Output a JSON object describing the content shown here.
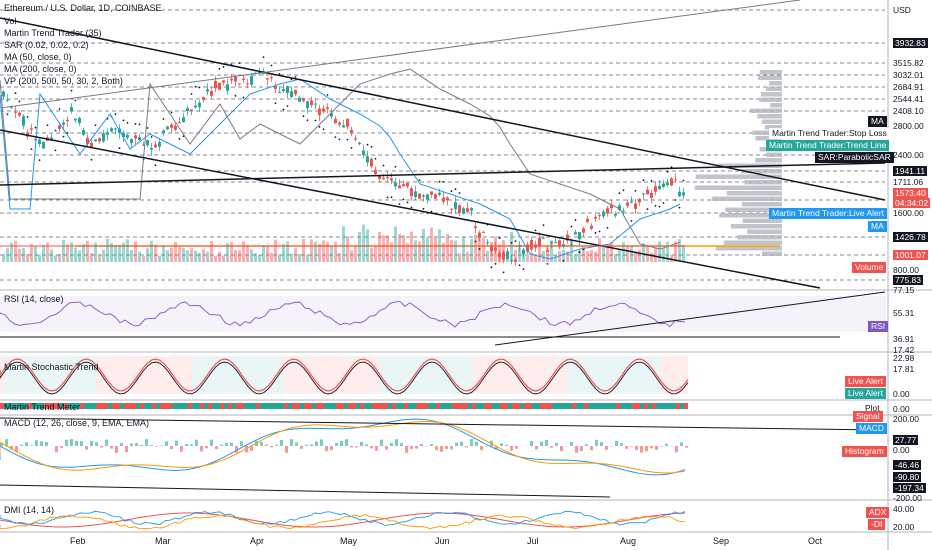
{
  "title": "Ethereum / U.S. Dollar, 1D, COINBASE",
  "legend": [
    "Vol",
    "Martin Trend Trader (35)",
    "SAR (0.02, 0.02, 0.2)",
    "MA (50, close, 0)",
    "MA (200, close, 0)",
    "VP (200, 500, 50, 30, 2, Both)"
  ],
  "currency": "USD",
  "price_axis": [
    "3932.83",
    "3515.82",
    "3032.01",
    "2684.91",
    "2544.41",
    "2408.10",
    "2800.00",
    "2400.00",
    "1941.11",
    "1711.06",
    "1573.40",
    "04:34:02",
    "1600.00",
    "1426.78",
    "1001.07",
    "800.00",
    "775.83"
  ],
  "price_tags": [
    {
      "text": "MA",
      "color": "#131722"
    },
    {
      "text": "Martin Trend Trader:Stop Loss",
      "color": "#131722"
    },
    {
      "text": "Martin Trend Trader:Trend Line",
      "color": "#26a69a"
    },
    {
      "text": "SAR:ParabolicSAR",
      "color": "#131722"
    },
    {
      "text": "Martin Trend Trader:Live Alert",
      "color": "#2196f3"
    },
    {
      "text": "MA",
      "color": "#2196f3"
    },
    {
      "text": "Volume",
      "color": "#ef5350"
    }
  ],
  "rsi": {
    "title": "RSI (14, close)",
    "axis": [
      "77.15",
      "55.31",
      "36.91",
      "17.42"
    ],
    "tag": "RSI"
  },
  "stoch": {
    "title": "Martin Stochastic Trend",
    "axis": [
      "22.98",
      "17.81",
      "0.00"
    ],
    "tags": [
      "Live Alert",
      "Live Alert"
    ]
  },
  "meter": {
    "title": "Martin Trend Meter",
    "axis": "0.00",
    "tag": "Plot"
  },
  "macd": {
    "title": "MACD (12, 26, close, 9, EMA, EMA)",
    "axis": [
      "200.00",
      "27.77",
      "0.00",
      "-46.46",
      "-90.80",
      "-197.34",
      "-200.00"
    ],
    "tags": [
      "Signal",
      "MACD",
      "Histogram"
    ]
  },
  "dmi": {
    "title": "DMI (14, 14)",
    "axis": [
      "40.00",
      "20.00"
    ],
    "tags": [
      "ADX",
      "-DI"
    ]
  },
  "months": [
    "Feb",
    "Mar",
    "Apr",
    "May",
    "Jun",
    "Jul",
    "Aug",
    "Sep",
    "Oct"
  ],
  "colors": {
    "up": "#26a69a",
    "down": "#ef5350",
    "ma50": "#2196f3",
    "ma200": "#787b86",
    "rsi": "#7e57c2",
    "vp": "#b2b5be",
    "orange": "#ff9800"
  }
}
